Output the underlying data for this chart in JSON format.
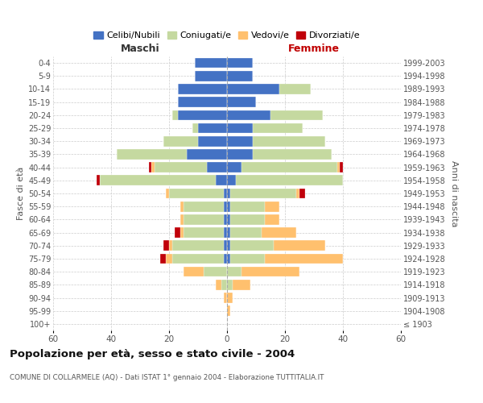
{
  "age_groups": [
    "100+",
    "95-99",
    "90-94",
    "85-89",
    "80-84",
    "75-79",
    "70-74",
    "65-69",
    "60-64",
    "55-59",
    "50-54",
    "45-49",
    "40-44",
    "35-39",
    "30-34",
    "25-29",
    "20-24",
    "15-19",
    "10-14",
    "5-9",
    "0-4"
  ],
  "birth_years": [
    "≤ 1903",
    "1904-1908",
    "1909-1913",
    "1914-1918",
    "1919-1923",
    "1924-1928",
    "1929-1933",
    "1934-1938",
    "1939-1943",
    "1944-1948",
    "1949-1953",
    "1954-1958",
    "1959-1963",
    "1964-1968",
    "1969-1973",
    "1974-1978",
    "1979-1983",
    "1984-1988",
    "1989-1993",
    "1994-1998",
    "1999-2003"
  ],
  "male": {
    "celibi": [
      0,
      0,
      0,
      0,
      0,
      1,
      1,
      1,
      1,
      1,
      1,
      4,
      7,
      14,
      10,
      10,
      17,
      17,
      17,
      11,
      11
    ],
    "coniugati": [
      0,
      0,
      0,
      2,
      8,
      18,
      18,
      14,
      14,
      14,
      19,
      40,
      18,
      24,
      12,
      2,
      2,
      0,
      0,
      0,
      0
    ],
    "vedovi": [
      0,
      0,
      1,
      2,
      7,
      2,
      1,
      1,
      1,
      1,
      1,
      0,
      1,
      0,
      0,
      0,
      0,
      0,
      0,
      0,
      0
    ],
    "divorziati": [
      0,
      0,
      0,
      0,
      0,
      2,
      2,
      2,
      0,
      0,
      0,
      1,
      1,
      0,
      0,
      0,
      0,
      0,
      0,
      0,
      0
    ]
  },
  "female": {
    "nubili": [
      0,
      0,
      0,
      0,
      0,
      1,
      1,
      1,
      1,
      1,
      1,
      3,
      5,
      9,
      9,
      9,
      15,
      10,
      18,
      9,
      9
    ],
    "coniugate": [
      0,
      0,
      0,
      2,
      5,
      12,
      15,
      11,
      12,
      12,
      23,
      37,
      33,
      27,
      25,
      17,
      18,
      0,
      11,
      0,
      0
    ],
    "vedove": [
      0,
      1,
      2,
      6,
      20,
      27,
      18,
      12,
      5,
      5,
      1,
      0,
      1,
      0,
      0,
      0,
      0,
      0,
      0,
      0,
      0
    ],
    "divorziate": [
      0,
      0,
      0,
      0,
      0,
      0,
      0,
      0,
      0,
      0,
      2,
      0,
      1,
      0,
      0,
      0,
      0,
      0,
      0,
      0,
      0
    ]
  },
  "colors": {
    "celibi": "#4472C4",
    "coniugati": "#c5d9a0",
    "vedovi": "#ffc06e",
    "divorziati": "#c0000a"
  },
  "xlim": 60,
  "title": "Popolazione per età, sesso e stato civile - 2004",
  "subtitle": "COMUNE DI COLLARMELE (AQ) - Dati ISTAT 1° gennaio 2004 - Elaborazione TUTTITALIA.IT",
  "ylabel": "Fasce di età",
  "ylabel_right": "Anni di nascita",
  "legend_labels": [
    "Celibi/Nubili",
    "Coniugati/e",
    "Vedovi/e",
    "Divorziati/e"
  ],
  "maschi_label": "Maschi",
  "femmine_label": "Femmine",
  "maschi_color": "#333333",
  "femmine_color": "#c00000"
}
